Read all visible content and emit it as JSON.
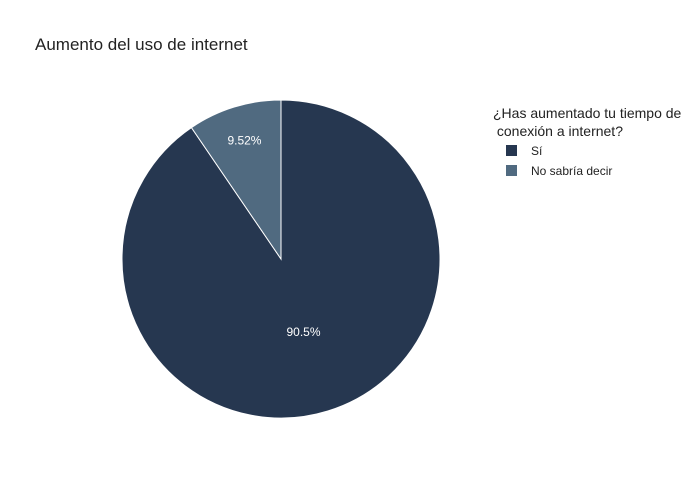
{
  "chart_data": {
    "type": "pie",
    "title": "Aumento del uso de internet",
    "legend_title_lines": [
      "¿Has aumentado tu tiempo de",
      " conexión a internet?"
    ],
    "legend_placement": "top-right",
    "slices": [
      {
        "label": "Sí",
        "value": 90.48,
        "text": "90.5%",
        "color": "#263750"
      },
      {
        "label": "No sabría decir",
        "value": 9.52,
        "text": "9.52%",
        "color": "#506a80"
      }
    ]
  }
}
